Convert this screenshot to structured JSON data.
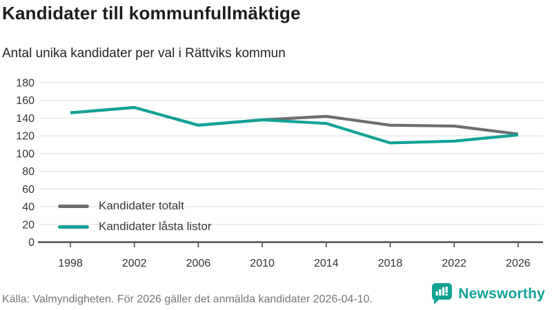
{
  "header": {
    "title": "Kandidater till kommunfullmäktige",
    "subtitle": "Antal unika kandidater per val i Rättviks kommun"
  },
  "chart_data": {
    "type": "line",
    "title": "Kandidater till kommunfullmäktige",
    "subtitle": "Antal unika kandidater per val i Rättviks kommun",
    "categories": [
      "1998",
      "2002",
      "2006",
      "2010",
      "2014",
      "2018",
      "2022",
      "2026"
    ],
    "series": [
      {
        "name": "Kandidater totalt",
        "color": "#6d6e71",
        "values": [
          146,
          152,
          132,
          138,
          142,
          132,
          131,
          122
        ]
      },
      {
        "name": "Kandidater låsta listor",
        "color": "#12a296",
        "values": [
          146,
          152,
          132,
          138,
          134,
          112,
          114,
          121
        ]
      }
    ],
    "xlabel": "",
    "ylabel": "",
    "ylim": [
      0,
      180
    ],
    "yticks": [
      0,
      20,
      40,
      60,
      80,
      100,
      120,
      140,
      160,
      180
    ],
    "grid": true,
    "legend_position": "inside-bottom-left"
  },
  "footer": {
    "source": "Källa: Valmyndigheten. För 2026 gäller det anmälda kandidater 2026-04-10.",
    "brand": "Newsworthy"
  },
  "colors": {
    "accent_teal": "#12a296",
    "series_gray": "#6d6e71",
    "grid_line": "#e4e4e4",
    "axis_line": "#4d4d4d",
    "tick_text": "#333333",
    "source_text": "#76777b"
  }
}
